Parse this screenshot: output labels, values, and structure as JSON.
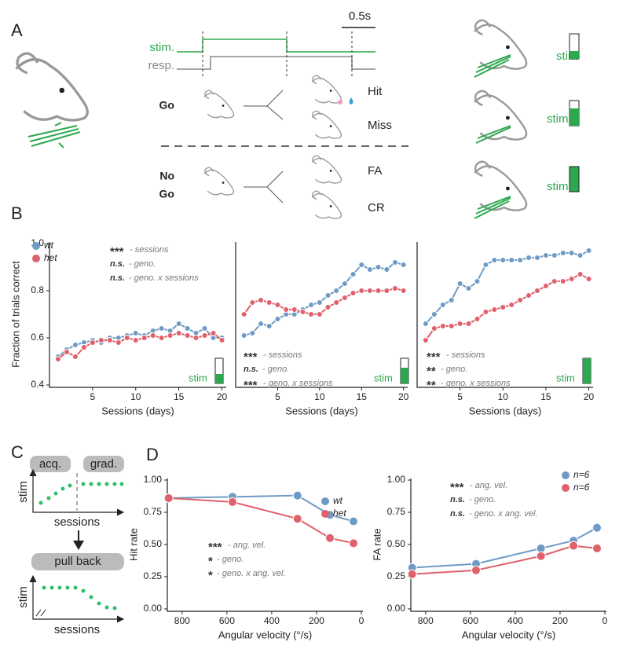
{
  "panel_a": {
    "label": "A",
    "stim": "stim.",
    "resp": "resp.",
    "scale": "0.5s",
    "go": "Go",
    "hit": "Hit",
    "miss": "Miss",
    "nogo_1": "No",
    "nogo_2": "Go",
    "fa": "FA",
    "cr": "CR",
    "stim_icons": [
      "stim",
      "stim",
      "stim"
    ]
  },
  "panel_labels": {
    "b": "B",
    "d": "D"
  },
  "panel_c": {
    "label": "C",
    "acq": "acq.",
    "grad": "grad.",
    "ylabel_top": "stim",
    "xlabel_top": "sessions",
    "pull_back": "pull back",
    "ylabel_bottom": "stim",
    "xlabel_bottom": "sessions"
  },
  "chart_data": [
    {
      "type": "line",
      "ylabel": "Fraction of trials correct",
      "xlabel": "Sessions (days)",
      "stim_label": "stim",
      "x": [
        1,
        2,
        3,
        4,
        5,
        6,
        7,
        8,
        9,
        10,
        11,
        12,
        13,
        14,
        15,
        16,
        17,
        18,
        19,
        20
      ],
      "series": [
        {
          "name": "wt",
          "color": "#6e9bc5",
          "values": [
            0.52,
            0.55,
            0.57,
            0.58,
            0.59,
            0.58,
            0.6,
            0.6,
            0.61,
            0.62,
            0.61,
            0.63,
            0.64,
            0.63,
            0.66,
            0.64,
            0.62,
            0.64,
            0.6,
            0.6
          ]
        },
        {
          "name": "het",
          "color": "#e0606b",
          "values": [
            0.51,
            0.54,
            0.52,
            0.56,
            0.58,
            0.59,
            0.59,
            0.58,
            0.6,
            0.59,
            0.6,
            0.61,
            0.6,
            0.61,
            0.62,
            0.61,
            0.6,
            0.61,
            0.62,
            0.59
          ]
        }
      ],
      "xlim": [
        0,
        20.5
      ],
      "xticks": [
        5,
        10,
        15,
        20
      ],
      "ylim": [
        0.4,
        1
      ],
      "yticks": [
        0.4,
        0.6,
        0.8,
        {
          "value": 1,
          "label": "1.0"
        }
      ],
      "annotations": [
        {
          "stars": "***",
          "text": "- sessions"
        },
        {
          "stars": "n.s.",
          "text": "- geno."
        },
        {
          "stars": "n.s.",
          "text": "- geno. x sessions"
        }
      ]
    },
    {
      "type": "line",
      "xlabel": "Sessions (days)",
      "stim_label": "stim",
      "x": [
        1,
        2,
        3,
        4,
        5,
        6,
        7,
        8,
        9,
        10,
        11,
        12,
        13,
        14,
        15,
        16,
        17,
        18,
        19,
        20
      ],
      "series": [
        {
          "color": "#6e9bc5",
          "values": [
            0.61,
            0.62,
            0.66,
            0.65,
            0.68,
            0.7,
            0.7,
            0.72,
            0.74,
            0.75,
            0.78,
            0.8,
            0.83,
            0.87,
            0.91,
            0.89,
            0.9,
            0.89,
            0.92,
            0.91
          ]
        },
        {
          "color": "#e0606b",
          "values": [
            0.7,
            0.75,
            0.76,
            0.75,
            0.74,
            0.72,
            0.72,
            0.71,
            0.7,
            0.7,
            0.73,
            0.75,
            0.77,
            0.79,
            0.8,
            0.8,
            0.8,
            0.8,
            0.81,
            0.8
          ]
        }
      ],
      "xlim": [
        0,
        20.5
      ],
      "xticks": [
        5,
        10,
        15,
        20
      ],
      "ylim": [
        0.4,
        1
      ],
      "annotations": [
        {
          "stars": "***",
          "text": "- sessions"
        },
        {
          "stars": "n.s.",
          "text": "- geno."
        },
        {
          "stars": "***",
          "text": "- geno. x sessions"
        }
      ]
    },
    {
      "type": "line",
      "xlabel": "Sessions (days)",
      "stim_label": "stim",
      "x": [
        1,
        2,
        3,
        4,
        5,
        6,
        7,
        8,
        9,
        10,
        11,
        12,
        13,
        14,
        15,
        16,
        17,
        18,
        19,
        20
      ],
      "series": [
        {
          "color": "#6e9bc5",
          "values": [
            0.66,
            0.7,
            0.74,
            0.76,
            0.83,
            0.81,
            0.84,
            0.91,
            0.93,
            0.93,
            0.93,
            0.93,
            0.94,
            0.94,
            0.95,
            0.95,
            0.96,
            0.96,
            0.95,
            0.97
          ]
        },
        {
          "color": "#e0606b",
          "values": [
            0.59,
            0.64,
            0.65,
            0.65,
            0.66,
            0.66,
            0.68,
            0.71,
            0.72,
            0.73,
            0.74,
            0.76,
            0.78,
            0.8,
            0.82,
            0.84,
            0.84,
            0.85,
            0.87,
            0.85
          ]
        }
      ],
      "xlim": [
        0,
        20.5
      ],
      "xticks": [
        5,
        10,
        15,
        20
      ],
      "ylim": [
        0.4,
        1
      ],
      "annotations": [
        {
          "stars": "***",
          "text": "- sessions"
        },
        {
          "stars": "**",
          "text": "- geno."
        },
        {
          "stars": "**",
          "text": "- geno. x sessions"
        }
      ]
    },
    {
      "type": "line",
      "ylabel": "Hit rate",
      "xlabel": "Angular velocity (°/s)",
      "x": [
        860,
        575,
        285,
        140,
        35
      ],
      "series": [
        {
          "name": "wt",
          "color": "#6e9bc5",
          "values": [
            0.86,
            0.87,
            0.88,
            0.73,
            0.68
          ]
        },
        {
          "name": "het",
          "color": "#e0606b",
          "values": [
            0.86,
            0.83,
            0.7,
            0.55,
            0.51
          ]
        }
      ],
      "xlim": [
        866,
        -7
      ],
      "xticks": [
        800,
        600,
        400,
        200,
        0
      ],
      "ylim": [
        0,
        1
      ],
      "yticks": [
        {
          "value": 0,
          "label": "0.00"
        },
        {
          "value": 0.25,
          "label": "0.25"
        },
        {
          "value": 0.5,
          "label": "0.50"
        },
        {
          "value": 0.75,
          "label": "0.75"
        },
        {
          "value": 1,
          "label": "1.00"
        }
      ],
      "annotations": [
        {
          "stars": "***",
          "text": "- ang. vel."
        },
        {
          "stars": "*",
          "text": "- geno."
        },
        {
          "stars": "*",
          "text": "- geno. x ang. vel."
        }
      ]
    },
    {
      "type": "line",
      "ylabel": "FA rate",
      "xlabel": "Angular velocity (°/s)",
      "x": [
        860,
        575,
        285,
        140,
        35
      ],
      "series": [
        {
          "name": "n=6",
          "color": "#6e9bc5",
          "values": [
            0.32,
            0.35,
            0.47,
            0.53,
            0.63
          ]
        },
        {
          "name": "n=6",
          "color": "#e0606b",
          "values": [
            0.27,
            0.3,
            0.41,
            0.49,
            0.47
          ]
        }
      ],
      "xlim": [
        866,
        -7
      ],
      "xticks": [
        800,
        600,
        400,
        200,
        0
      ],
      "ylim": [
        0,
        1
      ],
      "yticks": [
        {
          "value": 0,
          "label": "0.00"
        },
        {
          "value": 0.25,
          "label": "0.25"
        },
        {
          "value": 0.5,
          "label": "0.50"
        },
        {
          "value": 0.75,
          "label": "0.75"
        },
        {
          "value": 1,
          "label": "1.00"
        }
      ],
      "annotations": [
        {
          "stars": "***",
          "text": "- ang. vel."
        },
        {
          "stars": "n.s.",
          "text": "- geno."
        },
        {
          "stars": "n.s.",
          "text": "- geno. x ang. vel."
        }
      ]
    }
  ]
}
